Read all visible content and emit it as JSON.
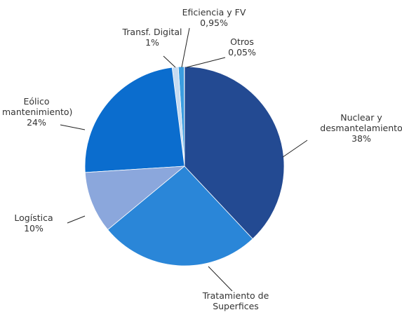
{
  "chart_data": {
    "type": "pie",
    "categories": [
      "Nuclear y desmantelamiento",
      "Tratamiento de Superfices",
      "Logística",
      "Eólico mantenimiento)",
      "Transf. Digital",
      "Eficiencia y FV",
      "Otros"
    ],
    "values": [
      38,
      26,
      10,
      24,
      1,
      0.95,
      0.05
    ],
    "value_labels": [
      "38%",
      null,
      "10%",
      "24%",
      "1%",
      "0,95%",
      "0,05%"
    ],
    "colors": [
      "#234a92",
      "#2a86d8",
      "#8ba7dc",
      "#0b6dce",
      "#c6dbf1",
      "#3b9de0",
      "#1f5fb0"
    ]
  }
}
